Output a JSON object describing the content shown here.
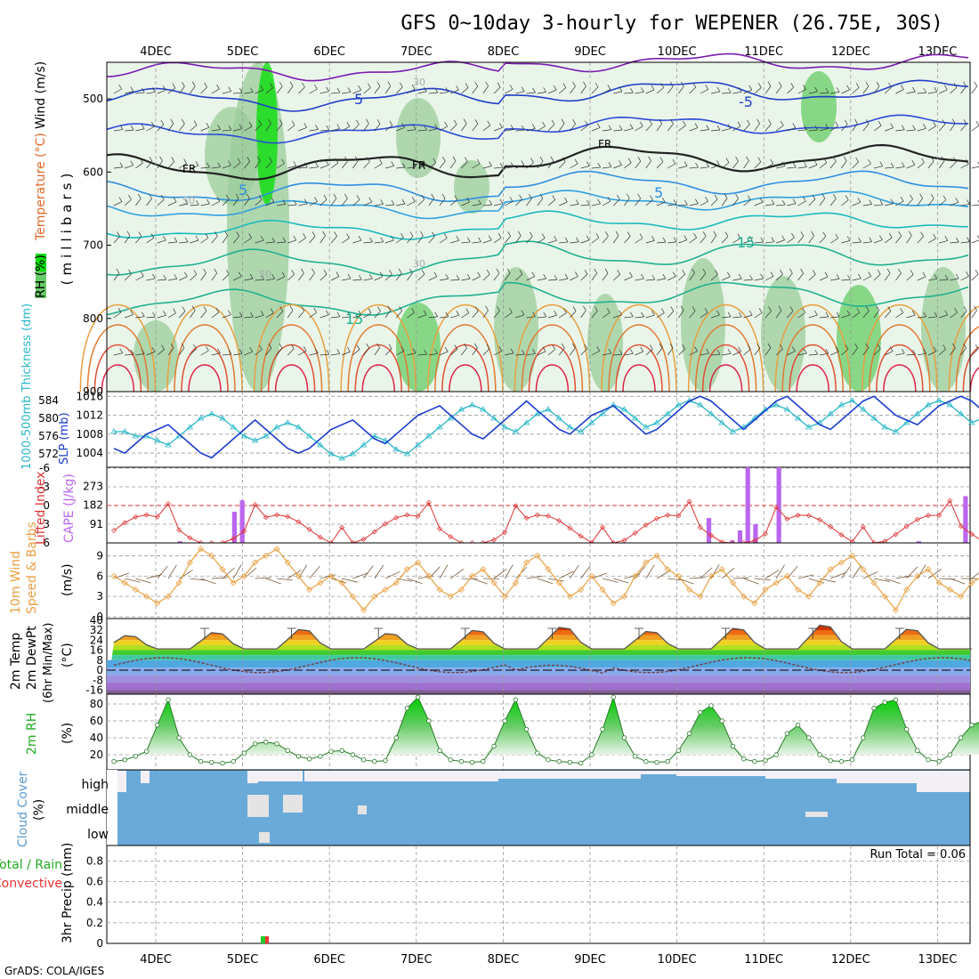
{
  "title": "GFS 0~10day 3-hourly for WEPENER (26.75E, 30S)",
  "footer": "GrADS: COLA/IGES",
  "dates": [
    "4DEC",
    "5DEC",
    "6DEC",
    "7DEC",
    "8DEC",
    "9DEC",
    "10DEC",
    "11DEC",
    "12DEC",
    "13DEC"
  ],
  "colors": {
    "grid": "#999999",
    "rh_light": "#dcefdc",
    "rh_mid": "#9acc9a",
    "rh_high": "#00dd00",
    "slp": "#1a3ccc",
    "thickness": "#2ab8c8",
    "lifted_index": "#dd3333",
    "cape": "#bb66ee",
    "wind10m": "#e8a040",
    "barb": "#7a5a3a",
    "cloud": "#6aaad8",
    "cloud_gap": "#e8e8e8",
    "precip_total": "#22cc22",
    "precip_conv": "#ee3333"
  },
  "panels": {
    "upper": {
      "ylabel": "(millibars)",
      "legend": [
        "RH (%)",
        "Temperature (°C)",
        "Wind (m/s)"
      ],
      "ticks": [
        "500",
        "600",
        "700",
        "800",
        "900"
      ],
      "labels": {
        "fr": "FR",
        "t5": "5",
        "tm5": "-5",
        "t15": "15",
        "rh30": "30",
        "rh50": "50"
      }
    },
    "slp": {
      "label_thk": "1000-500mb Thickness (dm)",
      "label_slp": "SLP (mb)",
      "thk_ticks": [
        "584",
        "580",
        "576",
        "572"
      ],
      "slp_ticks": [
        "1016",
        "1012",
        "1008",
        "1004"
      ]
    },
    "cape": {
      "label_li": "Lifted Index",
      "label_cape": "CAPE (J/kg)",
      "li_ticks": [
        "-6",
        "-3",
        "0",
        "3",
        "6"
      ],
      "cape_ticks": [
        "273",
        "182",
        "91"
      ]
    },
    "wind": {
      "label1": "10m Wind",
      "label2": "Speed & Barbs",
      "unit": "(m/s)",
      "ticks": [
        "9",
        "6",
        "3",
        "0"
      ]
    },
    "temp": {
      "label1": "2m Temp",
      "label2": "2m DewPt",
      "label3": "(6hr Min/Max)",
      "unit": "(°C)",
      "ticks": [
        "40",
        "32",
        "24",
        "16",
        "8",
        "0",
        "-8",
        "-16"
      ]
    },
    "rh": {
      "label": "2m RH",
      "unit": "(%)",
      "ticks": [
        "80",
        "60",
        "40",
        "20"
      ]
    },
    "cloud": {
      "label": "Cloud Cover",
      "unit": "(%)",
      "levels": [
        "high",
        "middle",
        "low"
      ]
    },
    "precip": {
      "label1": "Total / Rain",
      "label2": "Convective",
      "label3": "3hr Precip (mm)",
      "ticks": [
        "0.8",
        "0.6",
        "0.4",
        "0.2",
        "0"
      ],
      "run_total": "Run Total = 0.06"
    }
  },
  "chart_data": [
    {
      "type": "line",
      "title": "SLP (mb)",
      "x_start": "3.5DEC",
      "x_step_hours": 3,
      "ylim": [
        1001,
        1017
      ],
      "values": [
        1005,
        1004,
        1006,
        1008,
        1009,
        1010,
        1008,
        1006,
        1004,
        1003,
        1005,
        1007,
        1009,
        1011,
        1009,
        1007,
        1005,
        1004,
        1005,
        1007,
        1009,
        1010,
        1011,
        1009,
        1007,
        1006,
        1008,
        1010,
        1012,
        1013,
        1014,
        1012,
        1010,
        1008,
        1007,
        1009,
        1011,
        1013,
        1015,
        1013,
        1011,
        1009,
        1008,
        1010,
        1012,
        1013,
        1014,
        1012,
        1010,
        1008,
        1009,
        1011,
        1013,
        1015,
        1016,
        1015,
        1013,
        1011,
        1009,
        1011,
        1013,
        1015,
        1016,
        1014,
        1012,
        1010,
        1009,
        1011,
        1013,
        1015,
        1016,
        1014,
        1012,
        1011,
        1010,
        1012,
        1014,
        1015,
        1016,
        1015,
        1013,
        1011,
        1010,
        1012
      ]
    },
    {
      "type": "line",
      "title": "1000-500mb Thickness (dm)",
      "x_start": "3.5DEC",
      "x_step_hours": 3,
      "ylim": [
        569,
        586
      ],
      "values": [
        577,
        577,
        576,
        576,
        575,
        574,
        576,
        578,
        580,
        581,
        580,
        578,
        576,
        575,
        576,
        578,
        579,
        578,
        576,
        574,
        572,
        571,
        572,
        574,
        576,
        575,
        573,
        572,
        574,
        576,
        578,
        580,
        582,
        583,
        582,
        580,
        578,
        577,
        579,
        581,
        582,
        580,
        578,
        577,
        579,
        581,
        583,
        582,
        580,
        578,
        579,
        581,
        583,
        584,
        583,
        581,
        579,
        577,
        578,
        580,
        582,
        583,
        582,
        580,
        578,
        579,
        581,
        583,
        584,
        582,
        580,
        578,
        577,
        579,
        581,
        583,
        584,
        583,
        581,
        579,
        580,
        582,
        583,
        584
      ]
    },
    {
      "type": "line",
      "title": "10m Wind Speed (m/s)",
      "x_start": "3.5DEC",
      "x_step_hours": 3,
      "ylim": [
        0,
        11
      ],
      "values": [
        6,
        5,
        4,
        3,
        2,
        3,
        5,
        8,
        10,
        9,
        7,
        5,
        6,
        8,
        9,
        10,
        8,
        6,
        4,
        5,
        6,
        5,
        3,
        1,
        3,
        4,
        5,
        7,
        8,
        6,
        4,
        3,
        4,
        6,
        7,
        5,
        3,
        5,
        8,
        9,
        7,
        5,
        3,
        4,
        6,
        4,
        2,
        3,
        6,
        8,
        9,
        7,
        6,
        4,
        3,
        6,
        7,
        5,
        3,
        2,
        4,
        5,
        6,
        4,
        3,
        5,
        7,
        8,
        9,
        7,
        5,
        3,
        1,
        4,
        6,
        7,
        5,
        4,
        3,
        5,
        6,
        4,
        3,
        4
      ]
    },
    {
      "type": "line",
      "title": "2m RH (%)",
      "x_start": "3.5DEC",
      "x_step_hours": 3,
      "ylim": [
        0,
        90
      ],
      "values": [
        12,
        14,
        18,
        24,
        55,
        85,
        40,
        20,
        12,
        11,
        10,
        12,
        22,
        33,
        35,
        33,
        25,
        18,
        15,
        18,
        24,
        25,
        20,
        14,
        12,
        13,
        40,
        75,
        88,
        60,
        25,
        14,
        12,
        11,
        12,
        30,
        60,
        85,
        50,
        22,
        14,
        12,
        11,
        10,
        20,
        50,
        88,
        40,
        18,
        12,
        11,
        12,
        25,
        45,
        70,
        78,
        60,
        30,
        15,
        12,
        13,
        20,
        45,
        55,
        40,
        20,
        13,
        12,
        14,
        40,
        75,
        82,
        85,
        50,
        25,
        14,
        12,
        20,
        40,
        55,
        60,
        62,
        68,
        70
      ]
    },
    {
      "type": "bar",
      "title": "CAPE (J/kg)",
      "x_start": "3.5DEC",
      "x_step_hours": 3,
      "ylim": [
        0,
        364
      ],
      "values": [
        0,
        0,
        0,
        0,
        0,
        0,
        0,
        0,
        0,
        8,
        0,
        0,
        0,
        0,
        0,
        0,
        150,
        205,
        0,
        0,
        0,
        0,
        0,
        0,
        0,
        0,
        0,
        0,
        0,
        0,
        0,
        0,
        0,
        0,
        0,
        0,
        0,
        0,
        0,
        0,
        0,
        0,
        0,
        0,
        0,
        0,
        0,
        0,
        0,
        0,
        0,
        0,
        0,
        0,
        0,
        0,
        0,
        0,
        0,
        0,
        0,
        0,
        0,
        0,
        0,
        0,
        0,
        0,
        0,
        0,
        0,
        0,
        0,
        0,
        0,
        0,
        0,
        120,
        0,
        0,
        12,
        60,
        364,
        90,
        0,
        0,
        364,
        0,
        0,
        0,
        0,
        0,
        0,
        0,
        0,
        0,
        0,
        0,
        0,
        0,
        0,
        0,
        0,
        0,
        8,
        0,
        0,
        0,
        0,
        0,
        225
      ],
      "ylabel": "CAPE (J/kg)"
    }
  ]
}
